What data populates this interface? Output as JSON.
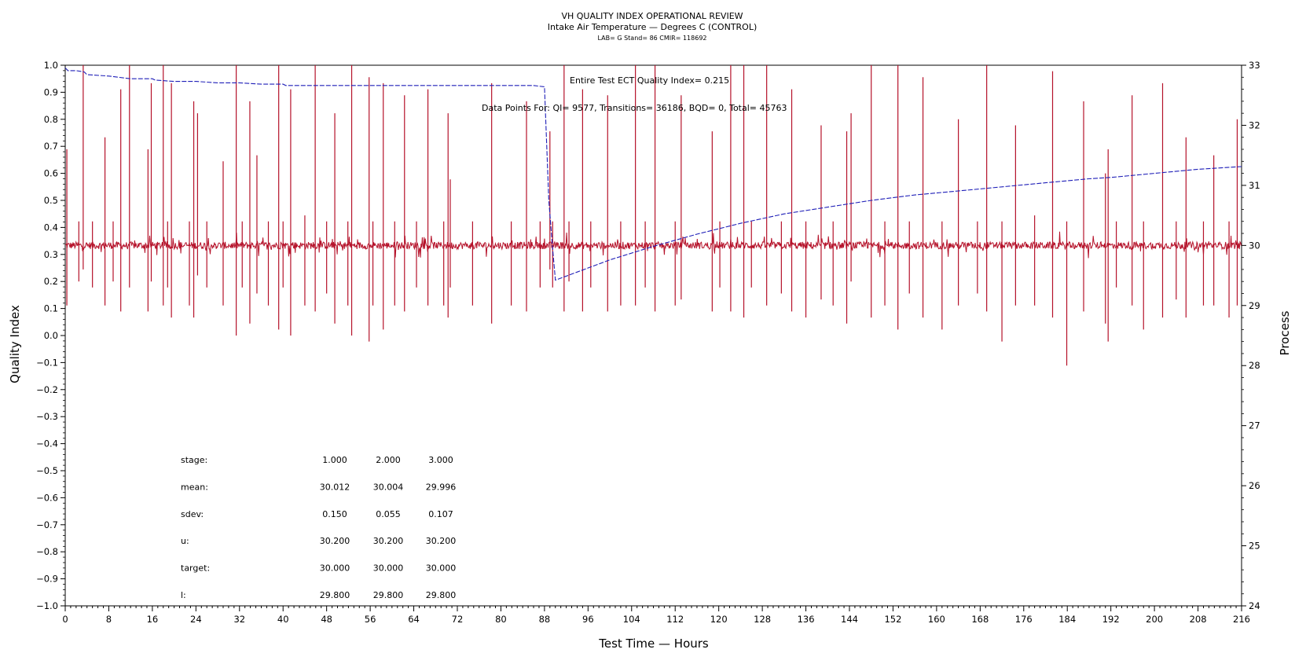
{
  "chart_data": {
    "type": "line",
    "title": "VH QUALITY INDEX OPERATIONAL REVIEW",
    "subtitle": "Intake Air Temperature — Degrees C (CONTROL)",
    "subtitle2": "LAB= G Stand= 86 CMIR= 118692",
    "xlabel": "Test Time — Hours",
    "ylabel_left": "Quality Index",
    "ylabel_right": "Process",
    "xlim": [
      0,
      216
    ],
    "ylim_left": [
      -1.0,
      1.0
    ],
    "ylim_right": [
      24,
      33
    ],
    "x_ticks": [
      0,
      8,
      16,
      24,
      32,
      40,
      48,
      56,
      64,
      72,
      80,
      88,
      96,
      104,
      112,
      120,
      128,
      136,
      144,
      152,
      160,
      168,
      176,
      184,
      192,
      200,
      208,
      216
    ],
    "y_left_ticks": [
      "1.0",
      "0.9",
      "0.8",
      "0.7",
      "0.6",
      "0.5",
      "0.4",
      "0.3",
      "0.2",
      "0.1",
      "0.0",
      "−0.1",
      "−0.2",
      "−0.3",
      "−0.4",
      "−0.5",
      "−0.6",
      "−0.7",
      "−0.8",
      "−0.9",
      "−1.0"
    ],
    "y_right_ticks": [
      24,
      25,
      26,
      27,
      28,
      29,
      30,
      31,
      32,
      33
    ],
    "annotation_qi": "Entire Test ECT Quality Index=   0.215",
    "annotation_points": "Data Points For: QI=   9577, Transitions= 36186, BQD=      0, Total= 45763",
    "series": [
      {
        "role": "quality_index",
        "axis": "left",
        "color": "#1f1fb8",
        "style": "dashed",
        "points": [
          [
            0,
            0.99
          ],
          [
            0.5,
            0.98
          ],
          [
            2,
            0.98
          ],
          [
            3.5,
            0.975
          ],
          [
            4,
            0.965
          ],
          [
            8,
            0.96
          ],
          [
            10,
            0.955
          ],
          [
            12,
            0.95
          ],
          [
            16,
            0.95
          ],
          [
            16.5,
            0.945
          ],
          [
            20,
            0.94
          ],
          [
            24,
            0.94
          ],
          [
            28,
            0.935
          ],
          [
            32,
            0.935
          ],
          [
            36,
            0.93
          ],
          [
            40,
            0.93
          ],
          [
            40.5,
            0.925
          ],
          [
            48,
            0.925
          ],
          [
            56,
            0.925
          ],
          [
            64,
            0.925
          ],
          [
            72,
            0.925
          ],
          [
            80,
            0.925
          ],
          [
            86,
            0.925
          ],
          [
            88,
            0.92
          ],
          [
            88.8,
            0.5
          ],
          [
            89.5,
            0.32
          ],
          [
            90,
            0.205
          ],
          [
            94,
            0.235
          ],
          [
            100,
            0.28
          ],
          [
            108,
            0.33
          ],
          [
            116,
            0.375
          ],
          [
            124,
            0.415
          ],
          [
            132,
            0.45
          ],
          [
            140,
            0.475
          ],
          [
            148,
            0.5
          ],
          [
            156,
            0.52
          ],
          [
            164,
            0.535
          ],
          [
            172,
            0.55
          ],
          [
            180,
            0.565
          ],
          [
            188,
            0.58
          ],
          [
            192,
            0.585
          ],
          [
            200,
            0.6
          ],
          [
            208,
            0.615
          ],
          [
            216,
            0.625
          ]
        ]
      },
      {
        "role": "process",
        "axis": "right",
        "color": "#b5122a",
        "baseline": 30.0,
        "noise": 0.06,
        "spikes": [
          [
            0.3,
            29.0,
            31.6
          ],
          [
            2.5,
            29.4,
            30.4
          ],
          [
            3.3,
            29.6,
            33.0
          ],
          [
            5.0,
            29.3,
            30.4
          ],
          [
            7.3,
            29.0,
            31.8
          ],
          [
            8.8,
            29.4,
            30.4
          ],
          [
            10.2,
            28.9,
            32.6
          ],
          [
            11.8,
            29.3,
            33.0
          ],
          [
            15.2,
            28.9,
            31.6
          ],
          [
            15.8,
            29.4,
            32.7
          ],
          [
            18.0,
            29.0,
            33.0
          ],
          [
            18.8,
            29.3,
            30.4
          ],
          [
            19.5,
            28.8,
            32.7
          ],
          [
            22.8,
            29.0,
            30.4
          ],
          [
            23.6,
            28.8,
            32.4
          ],
          [
            24.3,
            29.5,
            32.2
          ],
          [
            26.0,
            29.3,
            30.4
          ],
          [
            29.0,
            29.0,
            31.4
          ],
          [
            31.4,
            28.5,
            33.0
          ],
          [
            32.5,
            29.3,
            30.4
          ],
          [
            33.9,
            28.7,
            32.4
          ],
          [
            35.2,
            29.2,
            31.5
          ],
          [
            37.3,
            29.0,
            30.4
          ],
          [
            39.2,
            28.6,
            33.0
          ],
          [
            40.0,
            29.3,
            30.4
          ],
          [
            41.4,
            28.5,
            32.6
          ],
          [
            44.0,
            29.0,
            30.5
          ],
          [
            45.9,
            28.9,
            33.0
          ],
          [
            48.0,
            29.2,
            30.4
          ],
          [
            49.5,
            28.7,
            32.2
          ],
          [
            51.9,
            29.0,
            30.4
          ],
          [
            52.6,
            28.5,
            33.0
          ],
          [
            55.8,
            28.4,
            32.8
          ],
          [
            56.5,
            29.0,
            30.4
          ],
          [
            58.4,
            28.6,
            32.7
          ],
          [
            60.5,
            29.0,
            30.4
          ],
          [
            62.3,
            28.9,
            32.5
          ],
          [
            64.5,
            29.3,
            30.4
          ],
          [
            66.6,
            29.0,
            32.6
          ],
          [
            69.5,
            29.0,
            30.4
          ],
          [
            70.3,
            28.8,
            32.2
          ],
          [
            70.7,
            29.3,
            31.1
          ],
          [
            74.8,
            29.0,
            30.4
          ],
          [
            78.3,
            28.7,
            32.7
          ],
          [
            81.9,
            29.0,
            30.4
          ],
          [
            84.7,
            28.9,
            32.4
          ],
          [
            87.2,
            29.3,
            30.4
          ],
          [
            89.0,
            29.6,
            31.9
          ],
          [
            89.5,
            29.3,
            30.4
          ],
          [
            91.6,
            28.9,
            33.0
          ],
          [
            92.5,
            29.4,
            30.4
          ],
          [
            95.0,
            28.9,
            32.6
          ],
          [
            96.5,
            29.3,
            30.4
          ],
          [
            99.6,
            28.9,
            32.5
          ],
          [
            102.0,
            29.0,
            30.4
          ],
          [
            104.7,
            29.0,
            33.0
          ],
          [
            106.5,
            29.3,
            30.4
          ],
          [
            108.3,
            28.9,
            33.0
          ],
          [
            112.0,
            29.0,
            30.4
          ],
          [
            113.1,
            29.1,
            32.5
          ],
          [
            118.8,
            28.9,
            31.9
          ],
          [
            120.2,
            29.3,
            30.4
          ],
          [
            122.2,
            28.9,
            33.0
          ],
          [
            124.6,
            28.8,
            33.0
          ],
          [
            126.0,
            29.3,
            30.4
          ],
          [
            128.8,
            29.0,
            33.0
          ],
          [
            131.5,
            29.2,
            30.4
          ],
          [
            133.4,
            28.9,
            32.6
          ],
          [
            136.0,
            28.8,
            30.4
          ],
          [
            138.8,
            29.1,
            32.0
          ],
          [
            141.0,
            29.0,
            30.4
          ],
          [
            143.5,
            28.7,
            31.9
          ],
          [
            144.3,
            29.4,
            32.2
          ],
          [
            148.0,
            28.8,
            33.0
          ],
          [
            150.5,
            29.0,
            30.4
          ],
          [
            152.9,
            28.6,
            33.0
          ],
          [
            155.0,
            29.2,
            30.4
          ],
          [
            157.5,
            28.8,
            32.8
          ],
          [
            161.0,
            28.6,
            30.4
          ],
          [
            164.0,
            29.0,
            32.1
          ],
          [
            167.5,
            29.2,
            30.4
          ],
          [
            169.2,
            28.9,
            33.0
          ],
          [
            172.0,
            28.4,
            30.4
          ],
          [
            174.5,
            29.0,
            32.0
          ],
          [
            178.0,
            29.0,
            30.5
          ],
          [
            181.3,
            28.8,
            32.9
          ],
          [
            183.9,
            28.0,
            30.4
          ],
          [
            187.0,
            28.9,
            32.4
          ],
          [
            191.0,
            28.7,
            31.2
          ],
          [
            191.5,
            28.4,
            31.6
          ],
          [
            193.0,
            29.3,
            30.4
          ],
          [
            195.9,
            29.0,
            32.5
          ],
          [
            198.0,
            28.6,
            30.4
          ],
          [
            201.5,
            28.8,
            32.7
          ],
          [
            204.0,
            29.1,
            30.4
          ],
          [
            205.8,
            28.8,
            31.8
          ],
          [
            209.0,
            29.0,
            30.4
          ],
          [
            210.9,
            29.0,
            31.5
          ],
          [
            213.7,
            28.8,
            30.4
          ],
          [
            215.2,
            29.0,
            32.1
          ]
        ]
      }
    ],
    "stats_table": {
      "rows": [
        {
          "label": "stage:",
          "values": [
            "1.000",
            "2.000",
            "3.000"
          ]
        },
        {
          "label": "mean:",
          "values": [
            "30.012",
            "30.004",
            "29.996"
          ]
        },
        {
          "label": "sdev:",
          "values": [
            "0.150",
            "0.055",
            "0.107"
          ]
        },
        {
          "label": "u:",
          "values": [
            "30.200",
            "30.200",
            "30.200"
          ]
        },
        {
          "label": "target:",
          "values": [
            "30.000",
            "30.000",
            "30.000"
          ]
        },
        {
          "label": "l:",
          "values": [
            "29.800",
            "29.800",
            "29.800"
          ]
        }
      ]
    }
  }
}
